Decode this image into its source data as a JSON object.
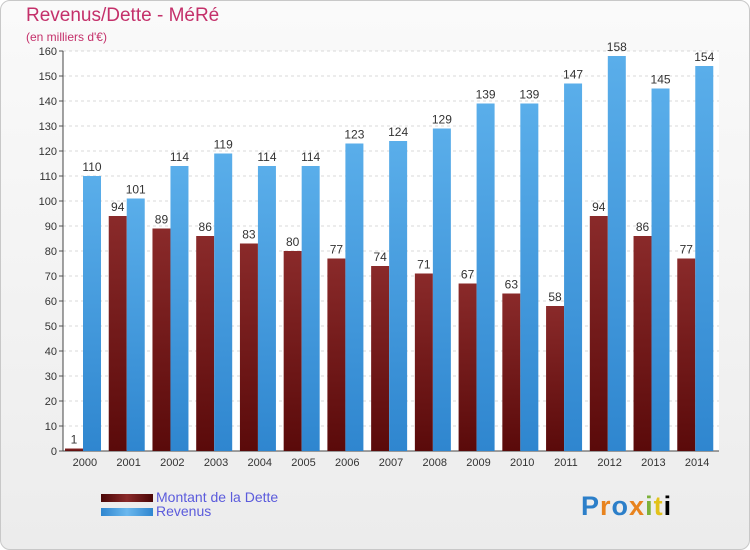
{
  "chart_data": {
    "type": "bar",
    "title": "Revenus/Dette - MéRé",
    "subtitle": "(en milliers d'€)",
    "categories": [
      "2000",
      "2001",
      "2002",
      "2003",
      "2004",
      "2005",
      "2006",
      "2007",
      "2008",
      "2009",
      "2010",
      "2011",
      "2012",
      "2013",
      "2014"
    ],
    "series": [
      {
        "name": "Montant de la Dette",
        "color": "#7a1c1c",
        "values": [
          1,
          94,
          89,
          86,
          83,
          80,
          77,
          74,
          71,
          67,
          63,
          58,
          94,
          86,
          77
        ]
      },
      {
        "name": "Revenus",
        "color": "#4a9fe0",
        "values": [
          110,
          101,
          114,
          119,
          114,
          114,
          123,
          124,
          129,
          139,
          139,
          147,
          158,
          145,
          154
        ]
      }
    ],
    "ylim": [
      0,
      160
    ],
    "yticks": [
      0,
      10,
      20,
      30,
      40,
      50,
      60,
      70,
      80,
      90,
      100,
      110,
      120,
      130,
      140,
      150,
      160
    ],
    "grid": true,
    "legend": "bottom-left"
  },
  "logo": {
    "letters": [
      "P",
      "r",
      "o",
      "x",
      "i",
      "t",
      "i"
    ]
  }
}
